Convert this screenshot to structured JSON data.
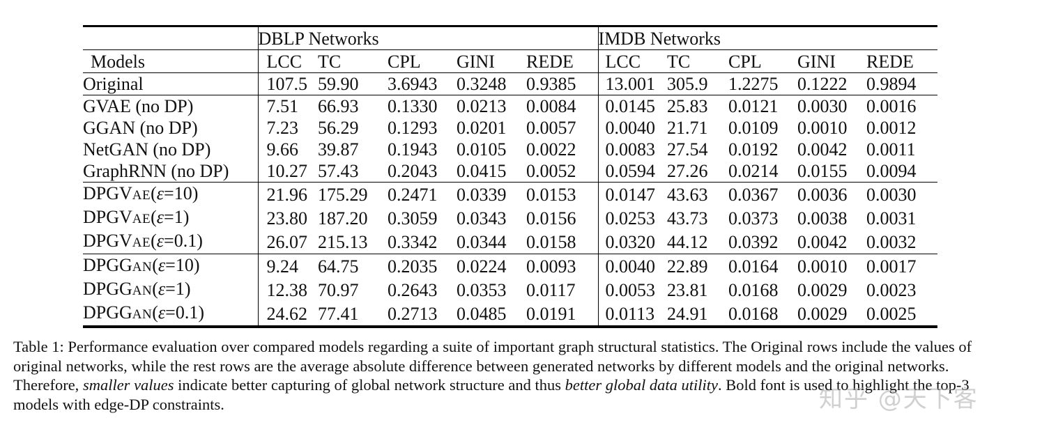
{
  "table": {
    "models_header": "Models",
    "groups": [
      {
        "label": "DBLP Networks"
      },
      {
        "label": "IMDB Networks"
      }
    ],
    "metrics": [
      "LCC",
      "TC",
      "CPL",
      "GINI",
      "REDE",
      "LCC",
      "TC",
      "CPL",
      "GINI",
      "REDE"
    ],
    "sections": [
      {
        "rows": [
          {
            "model": "Original",
            "values": [
              "107.5",
              "59.90",
              "3.6943",
              "0.3248",
              "0.9385",
              "13.001",
              "305.9",
              "1.2275",
              "0.1222",
              "0.9894"
            ],
            "bold": [
              false,
              false,
              false,
              false,
              false,
              false,
              false,
              false,
              false,
              false
            ]
          }
        ]
      },
      {
        "rows": [
          {
            "model": "GVAE (no DP)",
            "values": [
              "7.51",
              "66.93",
              "0.1330",
              "0.0213",
              "0.0084",
              "0.0145",
              "25.83",
              "0.0121",
              "0.0030",
              "0.0016"
            ],
            "bold": [
              false,
              false,
              false,
              false,
              false,
              false,
              false,
              false,
              false,
              false
            ]
          },
          {
            "model": "GGAN (no DP)",
            "values": [
              "7.23",
              "56.29",
              "0.1293",
              "0.0201",
              "0.0057",
              "0.0040",
              "21.71",
              "0.0109",
              "0.0010",
              "0.0012"
            ],
            "bold": [
              false,
              false,
              false,
              false,
              false,
              false,
              false,
              false,
              false,
              false
            ]
          },
          {
            "model": "NetGAN (no DP)",
            "values": [
              "9.66",
              "39.87",
              "0.1943",
              "0.0105",
              "0.0022",
              "0.0083",
              "27.54",
              "0.0192",
              "0.0042",
              "0.0011"
            ],
            "bold": [
              false,
              false,
              false,
              false,
              false,
              false,
              false,
              false,
              false,
              false
            ]
          },
          {
            "model": "GraphRNN (no DP)",
            "values": [
              "10.27",
              "57.43",
              "0.2043",
              "0.0415",
              "0.0052",
              "0.0594",
              "27.26",
              "0.0214",
              "0.0155",
              "0.0094"
            ],
            "bold": [
              false,
              false,
              false,
              false,
              false,
              false,
              false,
              false,
              false,
              false
            ]
          }
        ]
      },
      {
        "rows": [
          {
            "model_prefix": "DPGV",
            "model_sc": "AE",
            "model_eps": "ε",
            "model_suffix": "=10)",
            "values": [
              "21.96",
              "175.29",
              "0.2471",
              "0.0339",
              "0.0153",
              "0.0147",
              "43.63",
              "0.0367",
              "0.0036",
              "0.0030"
            ],
            "bold": [
              true,
              false,
              true,
              true,
              true,
              false,
              false,
              false,
              false,
              false
            ]
          },
          {
            "model_prefix": "DPGV",
            "model_sc": "AE",
            "model_eps": "ε",
            "model_suffix": "=1)",
            "values": [
              "23.80",
              "187.20",
              "0.3059",
              "0.0343",
              "0.0156",
              "0.0253",
              "43.73",
              "0.0373",
              "0.0038",
              "0.0031"
            ],
            "bold": [
              false,
              false,
              false,
              true,
              false,
              false,
              false,
              false,
              false,
              false
            ]
          },
          {
            "model_prefix": "DPGV",
            "model_sc": "AE",
            "model_eps": "ε",
            "model_suffix": "=0.1)",
            "values": [
              "26.07",
              "215.13",
              "0.3342",
              "0.0344",
              "0.0158",
              "0.0320",
              "44.12",
              "0.0392",
              "0.0042",
              "0.0032"
            ],
            "bold": [
              false,
              false,
              false,
              false,
              false,
              false,
              false,
              false,
              false,
              false
            ]
          }
        ]
      },
      {
        "rows": [
          {
            "model_prefix": "DPGG",
            "model_sc": "AN",
            "model_eps": "ε",
            "model_suffix": "=10)",
            "values": [
              "9.24",
              "64.75",
              "0.2035",
              "0.0224",
              "0.0093",
              "0.0040",
              "22.89",
              "0.0164",
              "0.0010",
              "0.0017"
            ],
            "bold": [
              true,
              true,
              true,
              true,
              true,
              true,
              true,
              true,
              true,
              true
            ]
          },
          {
            "model_prefix": "DPGG",
            "model_sc": "AN",
            "model_eps": "ε",
            "model_suffix": "=1)",
            "values": [
              "12.38",
              "70.97",
              "0.2643",
              "0.0353",
              "0.0117",
              "0.0053",
              "23.81",
              "0.0168",
              "0.0029",
              "0.0023"
            ],
            "bold": [
              true,
              true,
              true,
              false,
              true,
              true,
              true,
              true,
              true,
              true
            ]
          },
          {
            "model_prefix": "DPGG",
            "model_sc": "AN",
            "model_eps": "ε",
            "model_suffix": "=0.1)",
            "values": [
              "24.62",
              "77.41",
              "0.2713",
              "0.0485",
              "0.0191",
              "0.0113",
              "24.91",
              "0.0168",
              "0.0029",
              "0.0025"
            ],
            "bold": [
              false,
              true,
              false,
              false,
              false,
              true,
              true,
              true,
              true,
              true
            ]
          }
        ]
      }
    ]
  },
  "caption": {
    "part1": "Table 1: Performance evaluation over compared models regarding a suite of important graph structural statistics. The Original rows include the values of original networks, while the rest rows are the average absolute difference between generated networks by different models and the original networks. Therefore, ",
    "em1": "smaller values",
    "part2": " indicate better capturing of global network structure and thus ",
    "em2": "better global data utility",
    "part3": ". Bold font is used to highlight the top-3 models with edge-DP constraints."
  },
  "watermark": "知乎 @天下客"
}
